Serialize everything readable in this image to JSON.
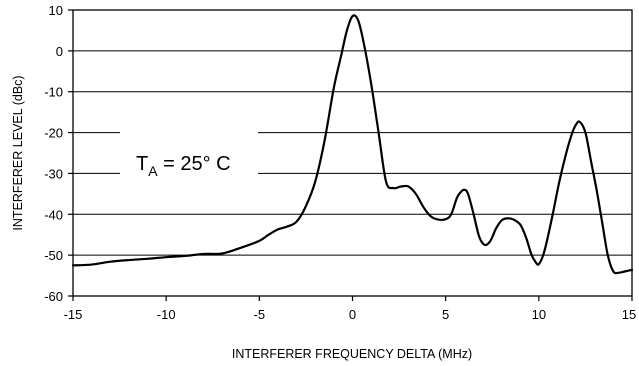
{
  "chart_data": {
    "type": "line",
    "xlabel": "INTERFERER FREQUENCY DELTA (MHz)",
    "ylabel": "INTERFERER LEVEL (dBc)",
    "xlim": [
      -15,
      15
    ],
    "ylim": [
      -60,
      10
    ],
    "xticks": [
      -15,
      -10,
      -5,
      0,
      5,
      10,
      15
    ],
    "yticks": [
      10,
      0,
      -10,
      -20,
      -30,
      -40,
      -50,
      -60
    ],
    "grid": "horizontal",
    "annotation": {
      "main": "T",
      "sub": "A",
      "rest": " = 25° C"
    },
    "series": [
      {
        "x": [
          -15,
          -14,
          -13,
          -12,
          -11,
          -10,
          -9,
          -8,
          -7,
          -6,
          -5,
          -4.5,
          -4,
          -3.5,
          -3,
          -2.5,
          -2,
          -1.5,
          -1,
          -0.6,
          -0.3,
          0,
          0.3,
          0.6,
          1,
          1.4,
          1.8,
          2.2,
          2.6,
          3,
          3.4,
          3.8,
          4.2,
          4.6,
          5,
          5.3,
          5.6,
          5.8,
          6,
          6.2,
          6.5,
          6.8,
          7.1,
          7.4,
          7.7,
          8,
          8.3,
          8.6,
          9,
          9.3,
          9.6,
          9.8,
          10,
          10.3,
          10.7,
          11.1,
          11.5,
          11.8,
          12,
          12.2,
          12.5,
          12.8,
          13.1,
          13.4,
          13.7,
          14,
          14.3,
          14.6,
          15
        ],
        "y": [
          -52.5,
          -52.3,
          -51.6,
          -51.2,
          -50.9,
          -50.5,
          -50.2,
          -49.7,
          -49.6,
          -48.2,
          -46.5,
          -45,
          -43.7,
          -43,
          -41.8,
          -38,
          -32,
          -22,
          -9,
          -1,
          5,
          8.5,
          7.5,
          2,
          -8,
          -20,
          -32,
          -33.6,
          -33.2,
          -33.2,
          -35,
          -38.2,
          -40.5,
          -41.3,
          -41.2,
          -40,
          -36,
          -34.6,
          -34,
          -35,
          -40,
          -45.5,
          -47.5,
          -46.5,
          -43.5,
          -41.5,
          -41,
          -41.2,
          -42.5,
          -45.5,
          -49.8,
          -51.5,
          -52.2,
          -49,
          -41,
          -32,
          -24.5,
          -20,
          -18,
          -17.4,
          -20,
          -27,
          -34,
          -42,
          -50,
          -54,
          -54.3,
          -54,
          -53.6
        ]
      }
    ]
  }
}
